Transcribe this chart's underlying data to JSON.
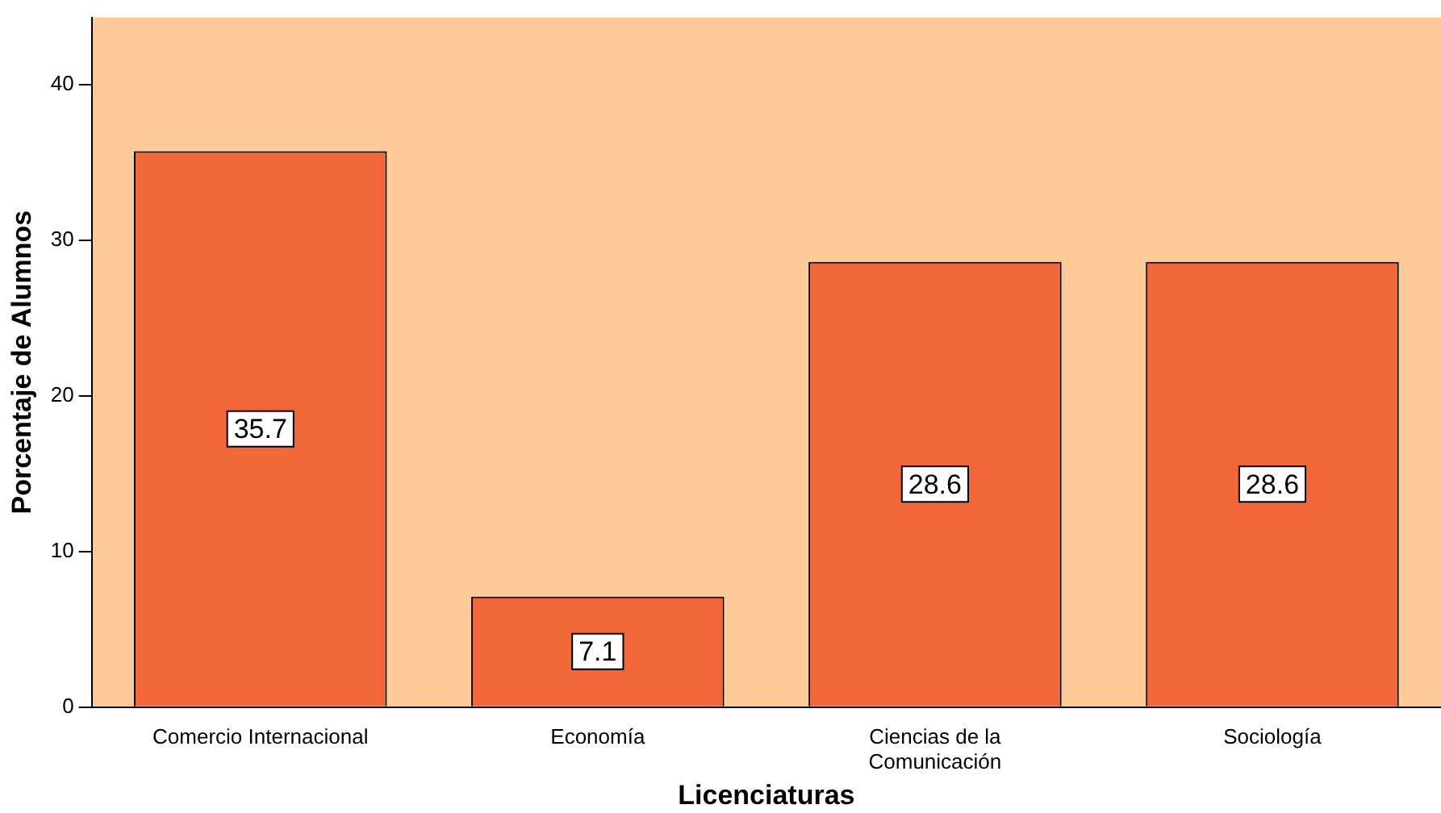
{
  "chart_data": {
    "type": "bar",
    "xlabel": "Licenciaturas",
    "ylabel": "Porcentaje de Alumnos",
    "categories": [
      "Comercio Internacional",
      "Economía",
      "Ciencias de la Comunicación",
      "Sociología"
    ],
    "values": [
      35.7,
      7.1,
      28.6,
      28.6
    ],
    "color": "#f26739",
    "ylim": [
      0,
      44.3
    ],
    "yticks": [
      0,
      10,
      20,
      30,
      40
    ],
    "grid": false,
    "legend": false,
    "data_labels": true
  }
}
